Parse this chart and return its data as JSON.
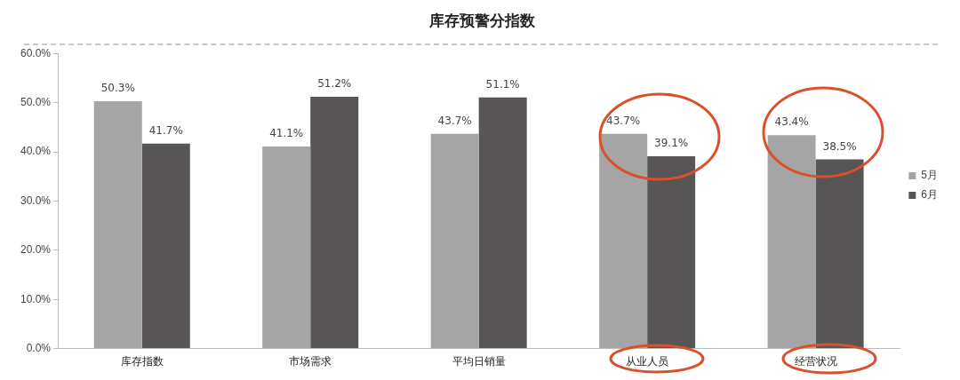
{
  "chart_data": {
    "type": "bar",
    "title": "库存预警分指数",
    "categories": [
      "库存指数",
      "市场需求",
      "平均日销量",
      "从业人员",
      "经营状况"
    ],
    "series": [
      {
        "name": "5月",
        "color": "#a6a5a6",
        "values": [
          50.3,
          41.1,
          43.7,
          43.7,
          43.4
        ],
        "value_labels": [
          "50.3%",
          "41.1%",
          "43.7%",
          "43.7%",
          "43.4%"
        ]
      },
      {
        "name": "6月",
        "color": "#575556",
        "values": [
          41.7,
          51.2,
          51.1,
          39.1,
          38.5
        ],
        "value_labels": [
          "41.7%",
          "51.2%",
          "51.1%",
          "39.1%",
          "38.5%"
        ]
      }
    ],
    "ylim": [
      0,
      60
    ],
    "yticks": [
      {
        "value": 0,
        "label": "0.0%"
      },
      {
        "value": 10,
        "label": "10.0%"
      },
      {
        "value": 20,
        "label": "20.0%"
      },
      {
        "value": 30,
        "label": "30.0%"
      },
      {
        "value": 40,
        "label": "40.0%"
      },
      {
        "value": 50,
        "label": "50.0%"
      },
      {
        "value": 60,
        "label": "60.0%"
      }
    ],
    "legend": "right"
  }
}
